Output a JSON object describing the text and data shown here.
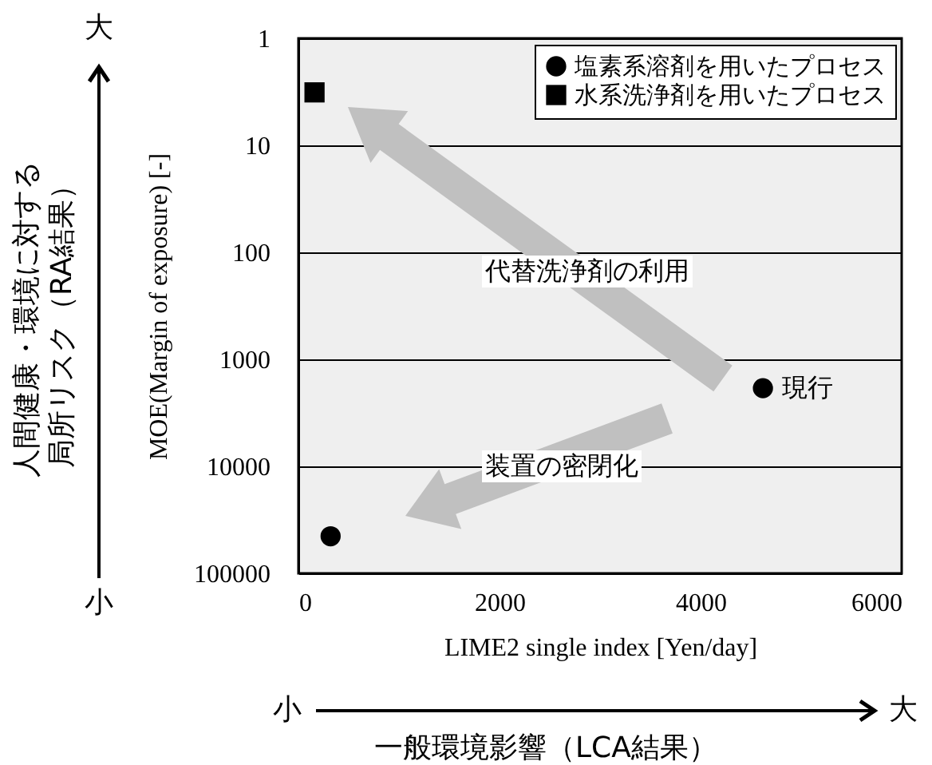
{
  "chart_data": {
    "type": "scatter",
    "xlabel": "LIME2 single index [Yen/day]",
    "ylabel": "MOE(Margin of exposure) [-]",
    "xlim": [
      0,
      6000
    ],
    "xticks": [
      0,
      2000,
      4000,
      6000
    ],
    "ylim": [
      100000,
      1
    ],
    "yticks": [
      1,
      10,
      100,
      1000,
      10000,
      100000
    ],
    "log": "y",
    "grid": "y",
    "legend": "top right",
    "series": [
      {
        "name": "塩素系溶剤を用いたプロセス",
        "color": "#000000",
        "marker": "circle",
        "x": [
          4620,
          320
        ],
        "values": [
          1860,
          45000
        ]
      },
      {
        "name": "水系洗浄剤を用いたプロセス",
        "color": "#000000",
        "marker": "square",
        "x": [
          160
        ],
        "values": [
          3.2
        ]
      }
    ],
    "annotations": [
      "代替洗浄剤の利用",
      "装置の密閉化",
      {
        "text": "現行",
        "x": 4620,
        "y": 1860
      },
      "大",
      "小",
      "人間健康・環境に対する局所リスク（RA結果）",
      "小",
      "大",
      "一般環境影響（LCA結果）"
    ]
  }
}
